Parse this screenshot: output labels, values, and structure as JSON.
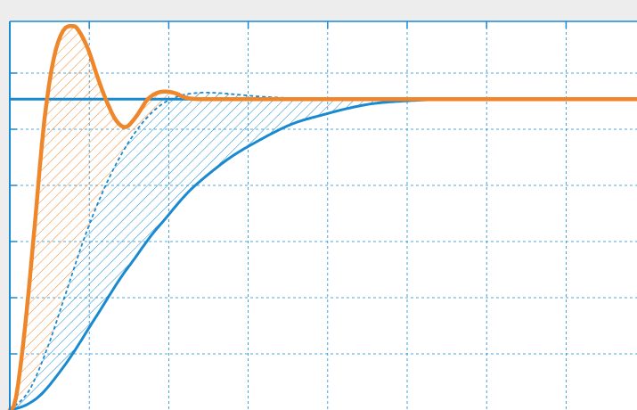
{
  "chart_data": {
    "type": "line",
    "title": "",
    "xlabel": "",
    "ylabel": "",
    "xlim": [
      0,
      10
    ],
    "ylim": [
      0,
      1.25
    ],
    "grid": true,
    "setpoint": 1.0,
    "series": [
      {
        "color": "#f0862a",
        "style": "solid",
        "x": [
          0,
          0.1,
          0.25,
          0.4,
          0.55,
          0.7,
          0.85,
          1.0,
          1.1,
          1.25,
          1.4,
          1.55,
          1.7,
          1.85,
          2.0,
          2.1,
          2.2,
          2.35,
          2.5,
          2.65,
          2.8,
          3.0,
          3.3,
          4.0,
          5.0,
          7.0,
          10.0
        ],
        "y": [
          0,
          0.04,
          0.28,
          0.6,
          0.93,
          1.13,
          1.22,
          1.235,
          1.22,
          1.16,
          1.07,
          0.99,
          0.93,
          0.91,
          0.94,
          0.97,
          1.0,
          1.02,
          1.024,
          1.018,
          1.005,
          1.0,
          1.0,
          1.0,
          1.0,
          1.0,
          1.0
        ]
      },
      {
        "color": "#1a8ad0",
        "style": "dashed",
        "x": [
          0,
          0.3,
          0.6,
          0.9,
          1.2,
          1.5,
          1.8,
          2.1,
          2.4,
          2.7,
          3.0,
          3.3,
          3.6,
          4.0,
          4.5,
          5.0,
          6.0,
          10.0
        ],
        "y": [
          0,
          0.06,
          0.2,
          0.38,
          0.56,
          0.71,
          0.83,
          0.92,
          0.98,
          1.01,
          1.02,
          1.02,
          1.015,
          1.008,
          1.003,
          1.0,
          1.0,
          1.0
        ]
      },
      {
        "color": "#1a8ad0",
        "style": "solid",
        "x": [
          0,
          0.25,
          0.5,
          0.75,
          1.0,
          1.25,
          1.5,
          1.75,
          2.0,
          2.25,
          2.5,
          2.75,
          3.0,
          3.5,
          4.0,
          4.5,
          5.0,
          5.5,
          6.0,
          7.0,
          8.0,
          10.0
        ],
        "y": [
          0,
          0.015,
          0.05,
          0.11,
          0.18,
          0.26,
          0.34,
          0.42,
          0.49,
          0.56,
          0.62,
          0.68,
          0.73,
          0.81,
          0.87,
          0.92,
          0.95,
          0.975,
          0.99,
          1.0,
          1.0,
          1.0
        ]
      }
    ]
  }
}
